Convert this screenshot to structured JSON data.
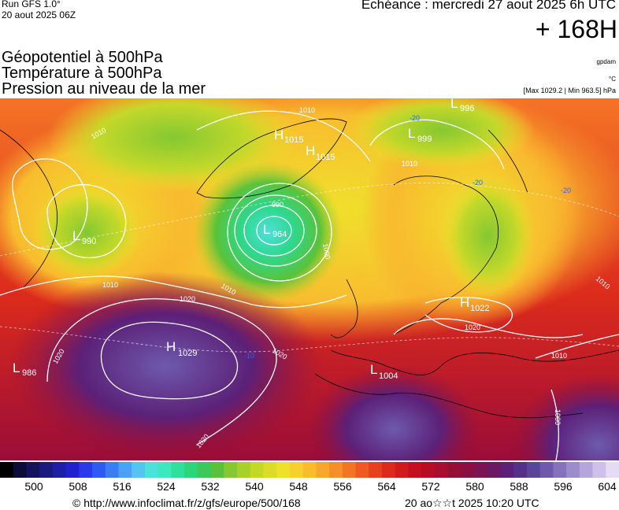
{
  "header": {
    "run": "Run GFS 1.0°",
    "run_date": "20 aout 2025 06Z",
    "echeance": "Echéance : mercredi 27 aout 2025 6h UTC",
    "horizon": "+ 168H",
    "legend_lines": [
      "Géopotentiel à 500hPa",
      "Température à 500hPa",
      "Pression au niveau de la mer"
    ],
    "producer": "gpdam",
    "unit": "°C",
    "max_min": "[Max 1029.2 | Min 963.5] hPa"
  },
  "map": {
    "pressure_centers": [
      {
        "type": "L",
        "value": "964"
      },
      {
        "type": "H",
        "value": "1015"
      },
      {
        "type": "H",
        "value": "1015"
      },
      {
        "type": "L",
        "value": "999"
      },
      {
        "type": "L",
        "value": "996"
      },
      {
        "type": "L",
        "value": "990"
      },
      {
        "type": "H",
        "value": "1029"
      },
      {
        "type": "L",
        "value": "986"
      },
      {
        "type": "H",
        "value": "1022"
      },
      {
        "type": "L",
        "value": "1004"
      }
    ],
    "isobar_labels": [
      "990",
      "1000",
      "1010",
      "1010",
      "1010",
      "1010",
      "1020",
      "1020",
      "1020",
      "1020",
      "1020",
      "1010",
      "1010",
      "1010",
      "1000"
    ],
    "temperature_labels": [
      "-20",
      "-20",
      "-20",
      "-10"
    ]
  },
  "colorbar": {
    "ticks": [
      "500",
      "508",
      "516",
      "524",
      "532",
      "540",
      "548",
      "556",
      "564",
      "572",
      "580",
      "588",
      "596",
      "604"
    ],
    "colors": [
      "#000000",
      "#0c0c3a",
      "#14145c",
      "#1a1a80",
      "#1e1ea6",
      "#2222cc",
      "#2a3ae6",
      "#2f5af2",
      "#3a7ef6",
      "#4aa2f8",
      "#55c4f4",
      "#4ee0dc",
      "#3ee8bc",
      "#2ee09a",
      "#2cd47a",
      "#3cc85a",
      "#5ac23a",
      "#84c832",
      "#a6d02c",
      "#c4d82a",
      "#dedc2a",
      "#f0e02c",
      "#f6d02e",
      "#f8bc2e",
      "#faa62e",
      "#f88e2a",
      "#f47426",
      "#ee5a22",
      "#e6401e",
      "#dc2a1c",
      "#d01a1c",
      "#c4101e",
      "#b60c24",
      "#a80c2e",
      "#9a0c38",
      "#8a1044",
      "#7a1452",
      "#6a1a64",
      "#5c2078",
      "#54308c",
      "#5a449c",
      "#6e5aac",
      "#8472bc",
      "#9c8ccc",
      "#b4a6dc",
      "#cec0ea",
      "#e4dcf4"
    ]
  },
  "footer": {
    "copyright": "© http://www.infoclimat.fr/z/gfs/europe/500/168",
    "generated": "20 ao☆☆t 2025 10:20 UTC"
  }
}
